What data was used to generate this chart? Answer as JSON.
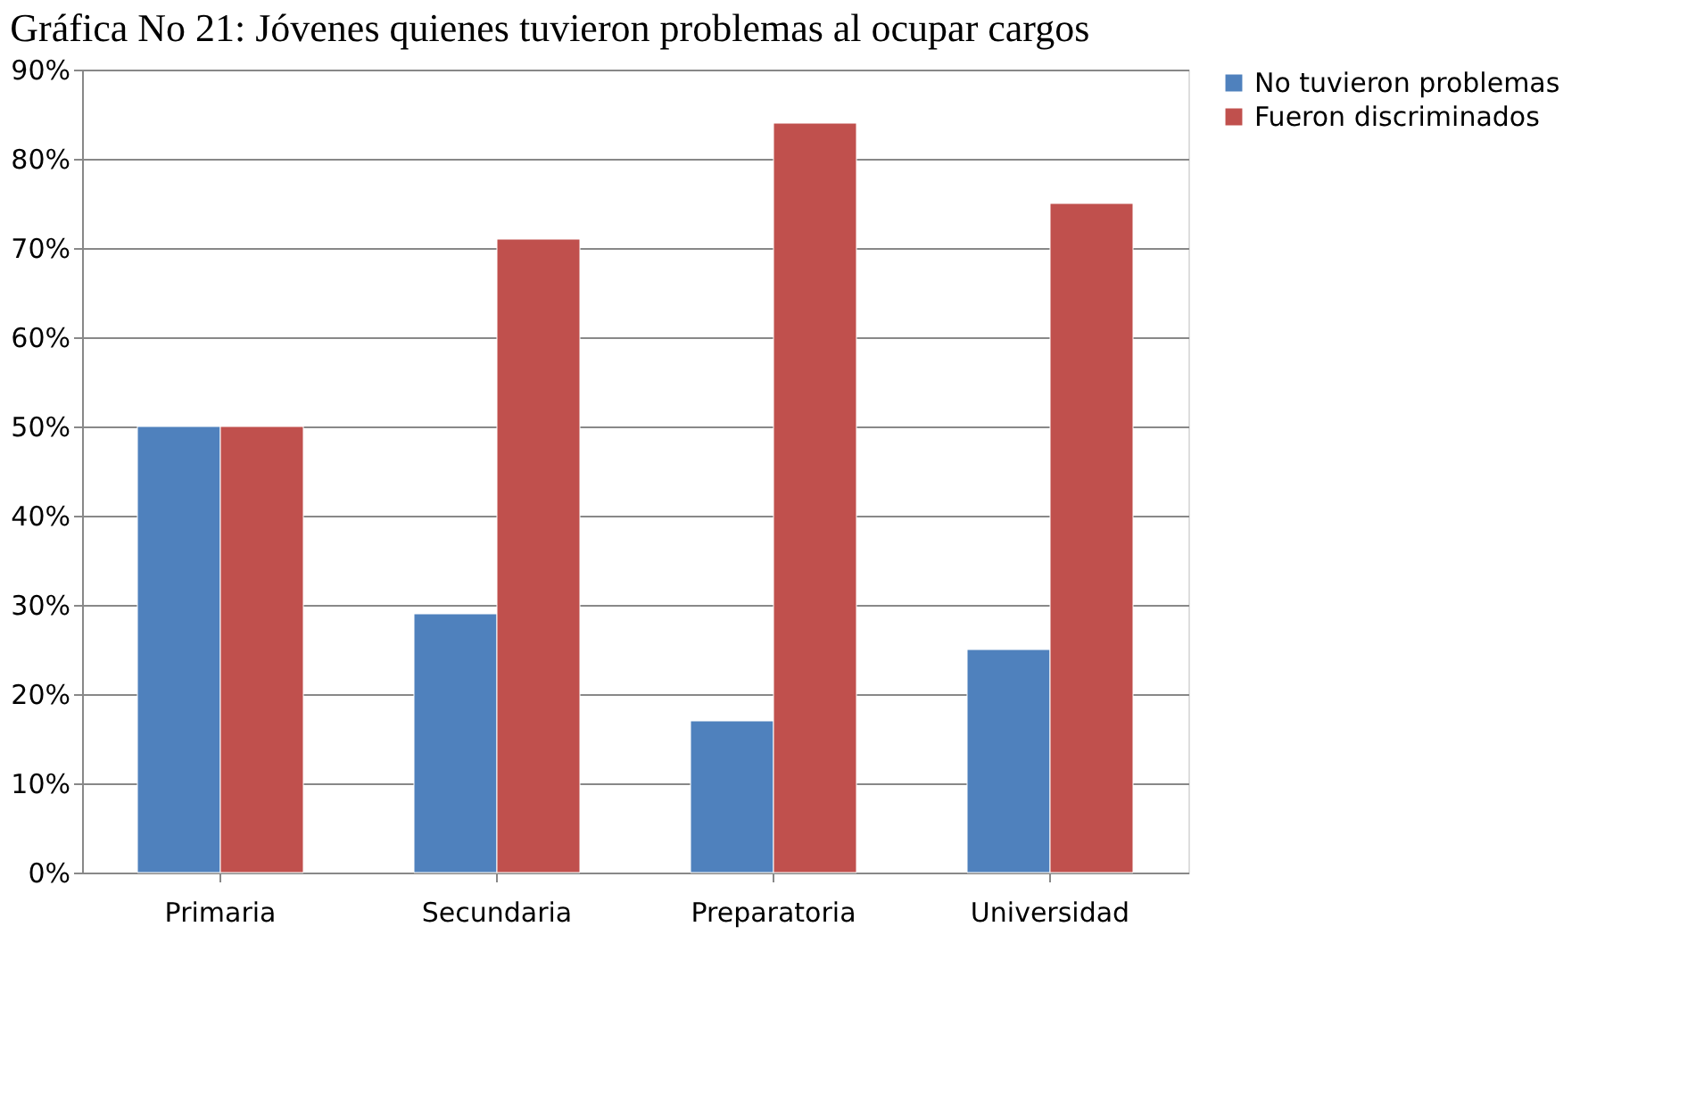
{
  "chart_data": {
    "type": "bar",
    "title": "Gráfica No 21: Jóvenes quienes tuvieron problemas al ocupar cargos",
    "categories": [
      "Primaria",
      "Secundaria",
      "Preparatoria",
      "Universidad"
    ],
    "series": [
      {
        "name": "No tuvieron problemas",
        "color": "#4f81bd",
        "values": [
          50,
          29,
          17,
          25
        ]
      },
      {
        "name": "Fueron discriminados",
        "color": "#c0504d",
        "values": [
          50,
          71,
          84,
          75
        ]
      }
    ],
    "ylim": [
      0,
      90
    ],
    "yticks": [
      {
        "value": 0,
        "label": "0%"
      },
      {
        "value": 10,
        "label": "10%"
      },
      {
        "value": 20,
        "label": "20%"
      },
      {
        "value": 30,
        "label": "30%"
      },
      {
        "value": 40,
        "label": "40%"
      },
      {
        "value": 50,
        "label": "50%"
      },
      {
        "value": 60,
        "label": "60%"
      },
      {
        "value": 70,
        "label": "70%"
      },
      {
        "value": 80,
        "label": "80%"
      },
      {
        "value": 90,
        "label": "90%"
      }
    ],
    "grid": "y",
    "legend": "right"
  }
}
